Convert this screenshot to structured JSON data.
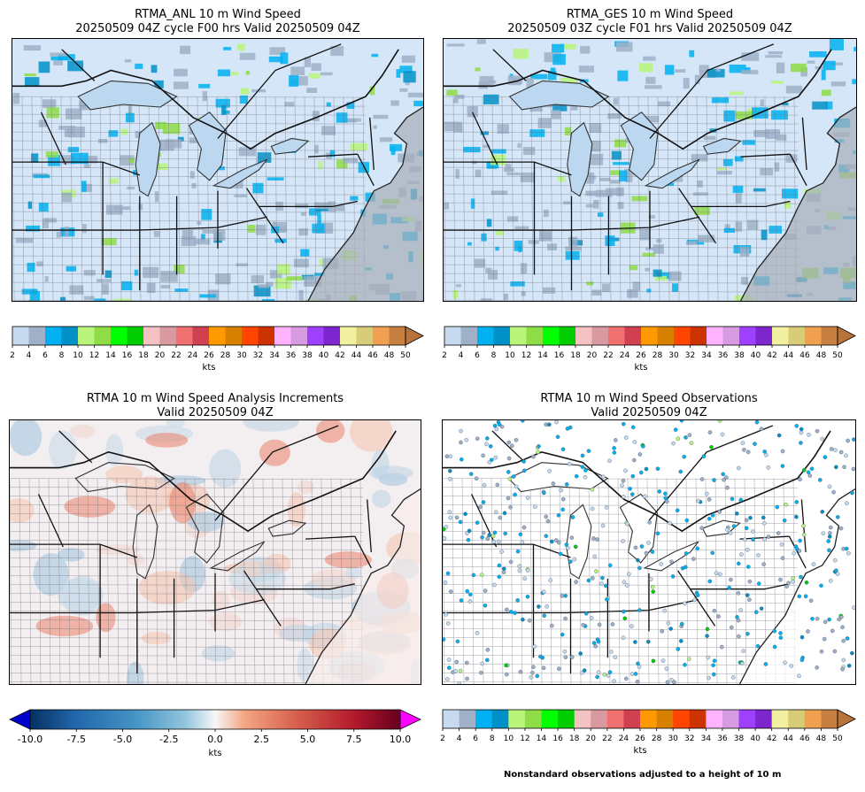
{
  "panels": [
    {
      "id": "anl",
      "title_line1": "RTMA_ANL 10 m Wind Speed",
      "title_line2": "20250509 04Z cycle F00 hrs Valid 20250509 04Z",
      "colorbar": "speed"
    },
    {
      "id": "ges",
      "title_line1": "RTMA_GES 10 m Wind Speed",
      "title_line2": "20250509 03Z cycle F01 hrs Valid 20250509 04Z",
      "colorbar": "speed"
    },
    {
      "id": "inc",
      "title_line1": "RTMA 10 m Wind Speed Analysis Increments",
      "title_line2": "Valid 20250509 04Z",
      "colorbar": "diverging"
    },
    {
      "id": "obs",
      "title_line1": "RTMA 10 m Wind Speed Observations",
      "title_line2": "Valid 20250509 04Z",
      "colorbar": "speed"
    }
  ],
  "speed_colorbar": {
    "unit_label": "kts",
    "ticks": [
      "2",
      "4",
      "6",
      "8",
      "10",
      "12",
      "14",
      "16",
      "18",
      "20",
      "22",
      "24",
      "26",
      "28",
      "30",
      "32",
      "34",
      "36",
      "38",
      "40",
      "42",
      "44",
      "46",
      "48",
      "50"
    ],
    "colors": [
      "#c6dbef",
      "#9fb0c8",
      "#00b0f0",
      "#0090c8",
      "#b9f57a",
      "#8edc46",
      "#00ff00",
      "#00cc00",
      "#f4c2c2",
      "#d89aa0",
      "#f07070",
      "#d04050",
      "#ff9900",
      "#d88000",
      "#ff4500",
      "#cc3300",
      "#ffb3ff",
      "#d69be0",
      "#a040ff",
      "#7d26cd",
      "#f0f0a0",
      "#d8cc78",
      "#f0a050",
      "#c88040"
    ],
    "extend_color": "#b8733a"
  },
  "diverging_colorbar": {
    "unit_label": "kts",
    "ticks": [
      "-10.0",
      "-7.5",
      "-5.0",
      "-2.5",
      "0.0",
      "2.5",
      "5.0",
      "7.5",
      "10.0"
    ],
    "min": -10,
    "max": 10,
    "under_color": "#0000cc",
    "over_color": "#ff00ff"
  },
  "footnote": "Nonstandard observations adjusted to a height of 10 m"
}
